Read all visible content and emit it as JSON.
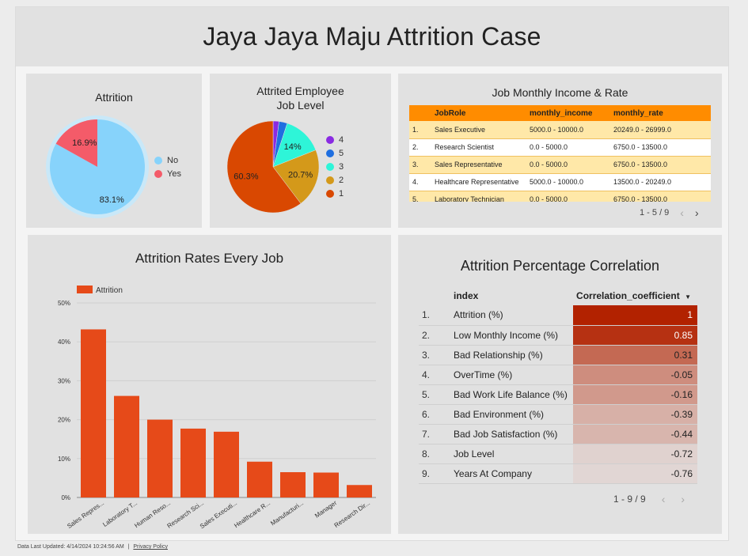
{
  "report": {
    "title": "Jaya Jaya Maju Attrition Case"
  },
  "attrition_pie": {
    "title": "Attrition",
    "slices": [
      {
        "label": "No",
        "value": 83.1,
        "display": "83.1%",
        "color": "#87d3fb"
      },
      {
        "label": "Yes",
        "value": 16.9,
        "display": "16.9%",
        "color": "#f45b69"
      }
    ]
  },
  "joblevel_pie": {
    "title": "Attrited Employee Job Level",
    "title_line1": "Attrited Employee",
    "title_line2": "Job Level",
    "slices": [
      {
        "label": "1",
        "value": 60.3,
        "display": "60.3%",
        "color": "#d94801"
      },
      {
        "label": "2",
        "value": 20.7,
        "display": "20.7%",
        "color": "#d4991a"
      },
      {
        "label": "3",
        "value": 14.0,
        "display": "14%",
        "color": "#2ef5d8"
      },
      {
        "label": "5",
        "value": 2.9,
        "display": "",
        "color": "#1f6fe0"
      },
      {
        "label": "4",
        "value": 2.1,
        "display": "",
        "color": "#8a2be2"
      }
    ],
    "legend_order": [
      "4",
      "5",
      "3",
      "2",
      "1"
    ]
  },
  "job_income": {
    "title": "Job Monthly Income  & Rate",
    "columns": [
      "",
      "JobRole",
      "monthly_income",
      "monthly_rate"
    ],
    "rows": [
      {
        "num": "1.",
        "role": "Sales Executive",
        "income": "5000.0 - 10000.0",
        "rate": "20249.0 - 26999.0"
      },
      {
        "num": "2.",
        "role": "Research Scientist",
        "income": "0.0 - 5000.0",
        "rate": "6750.0 - 13500.0"
      },
      {
        "num": "3.",
        "role": "Sales Representative",
        "income": "0.0 - 5000.0",
        "rate": "6750.0 - 13500.0"
      },
      {
        "num": "4.",
        "role": "Healthcare Representative",
        "income": "5000.0 - 10000.0",
        "rate": "13500.0 - 20249.0"
      },
      {
        "num": "5.",
        "role": "Laboratory Technician",
        "income": "0.0 - 5000.0",
        "rate": "6750.0 - 13500.0"
      }
    ],
    "pager": "1 - 5 / 9"
  },
  "chart_data": {
    "type": "bar",
    "title": "Attrition Rates Every Job",
    "legend": "Attrition",
    "categories": [
      "Sales Repres...",
      "Laboratory T...",
      "Human Reso...",
      "Research Sci...",
      "Sales Executi...",
      "Healthcare R...",
      "Manufacturi...",
      "Manager",
      "Research Dir..."
    ],
    "series": [
      {
        "name": "Attrition",
        "values": [
          43.2,
          26.1,
          20.0,
          17.7,
          16.9,
          9.2,
          6.5,
          6.4,
          3.2
        ]
      }
    ],
    "yticks": [
      "0%",
      "10%",
      "20%",
      "30%",
      "40%",
      "50%"
    ],
    "ylim": [
      0,
      50
    ],
    "color": "#e64a19"
  },
  "correlation": {
    "title": "Attrition Percentage Correlation",
    "col_index": "index",
    "col_value": "Correlation_coefficient",
    "sort_icon": "sort-desc-icon",
    "rows": [
      {
        "num": "1.",
        "index": "Attrition (%)",
        "value": "1",
        "v": 1.0
      },
      {
        "num": "2.",
        "index": "Low Monthly Income (%)",
        "value": "0.85",
        "v": 0.85
      },
      {
        "num": "3.",
        "index": "Bad Relationship (%)",
        "value": "0.31",
        "v": 0.31
      },
      {
        "num": "4.",
        "index": "OverTime (%)",
        "value": "-0.05",
        "v": -0.05
      },
      {
        "num": "5.",
        "index": "Bad Work Life Balance (%)",
        "value": "-0.16",
        "v": -0.16
      },
      {
        "num": "6.",
        "index": "Bad Environment (%)",
        "value": "-0.39",
        "v": -0.39
      },
      {
        "num": "7.",
        "index": "Bad Job Satisfaction (%)",
        "value": "-0.44",
        "v": -0.44
      },
      {
        "num": "8.",
        "index": "Job Level",
        "value": "-0.72",
        "v": -0.72
      },
      {
        "num": "9.",
        "index": "Years At Company",
        "value": "-0.76",
        "v": -0.76
      }
    ],
    "pager": "1 - 9 / 9"
  },
  "footer": {
    "updated": "Data Last Updated: 4/14/2024 10:24:56 AM",
    "separator": "|",
    "privacy": "Privacy Policy"
  }
}
